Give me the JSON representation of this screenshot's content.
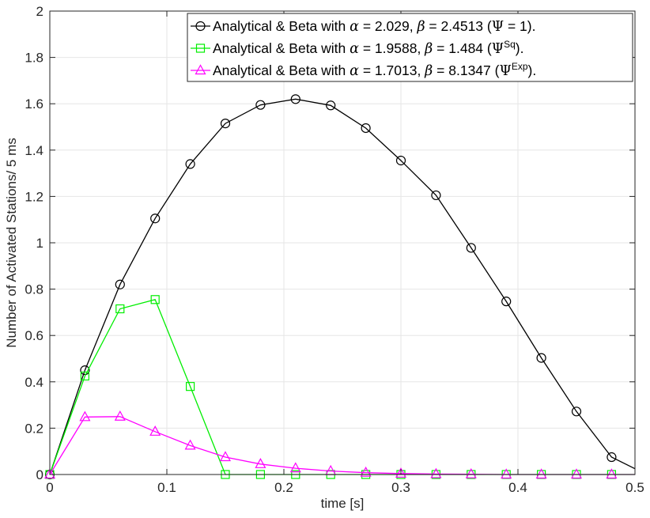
{
  "chart_data": {
    "type": "line",
    "title": "",
    "xlabel": "time [s]",
    "ylabel": "Number of Activated Stations/ 5 ms",
    "xlim": [
      0,
      0.5
    ],
    "ylim": [
      0,
      2
    ],
    "grid": true,
    "legend_position": "top-right",
    "xticks": [
      "0",
      "0.1",
      "0.2",
      "0.3",
      "0.4",
      "0.5"
    ],
    "yticks": [
      "0",
      "0.2",
      "0.4",
      "0.6",
      "0.8",
      "1",
      "1.2",
      "1.4",
      "1.6",
      "1.8",
      "2"
    ],
    "x": [
      0,
      0.03,
      0.06,
      0.09,
      0.12,
      0.15,
      0.18,
      0.21,
      0.24,
      0.27,
      0.3,
      0.33,
      0.36,
      0.39,
      0.42,
      0.45,
      0.48
    ],
    "series": [
      {
        "key": "psi1",
        "color": "#000000",
        "marker": "circle",
        "legend_parts": [
          "Analytical & Beta with ",
          "α",
          " = 2.029, ",
          "β",
          " = 2.4513 (",
          "Ψ",
          " = 1)."
        ],
        "values": [
          0,
          0.45,
          0.82,
          1.105,
          1.34,
          1.515,
          1.595,
          1.62,
          1.593,
          1.495,
          1.355,
          1.205,
          0.978,
          0.747,
          0.503,
          0.272,
          0.075
        ],
        "line_extension": {
          "x": 0.5,
          "y": 0.025
        }
      },
      {
        "key": "psisq",
        "color": "#00ee00",
        "marker": "square",
        "legend_parts": [
          "Analytical & Beta with ",
          "α",
          " = 1.9588, ",
          "β",
          " = 1.484 (",
          "Ψ",
          "Sq",
          ")."
        ],
        "values": [
          0,
          0.425,
          0.715,
          0.755,
          0.38,
          0,
          0,
          0,
          0,
          0,
          0,
          0,
          0,
          0,
          0,
          0,
          0
        ],
        "line_extension": {
          "x": 0.5,
          "y": 0
        }
      },
      {
        "key": "psiexp",
        "color": "#ff00ff",
        "marker": "triangle",
        "legend_parts": [
          "Analytical & Beta with ",
          "α",
          " = 1.7013, ",
          "β",
          " = 8.1347 (",
          "Ψ",
          "Exp",
          ")."
        ],
        "values": [
          0,
          0.248,
          0.25,
          0.185,
          0.125,
          0.075,
          0.045,
          0.027,
          0.015,
          0.008,
          0.004,
          0.002,
          0.001,
          0,
          0,
          0,
          0
        ],
        "line_extension": {
          "x": 0.5,
          "y": 0
        }
      }
    ]
  }
}
